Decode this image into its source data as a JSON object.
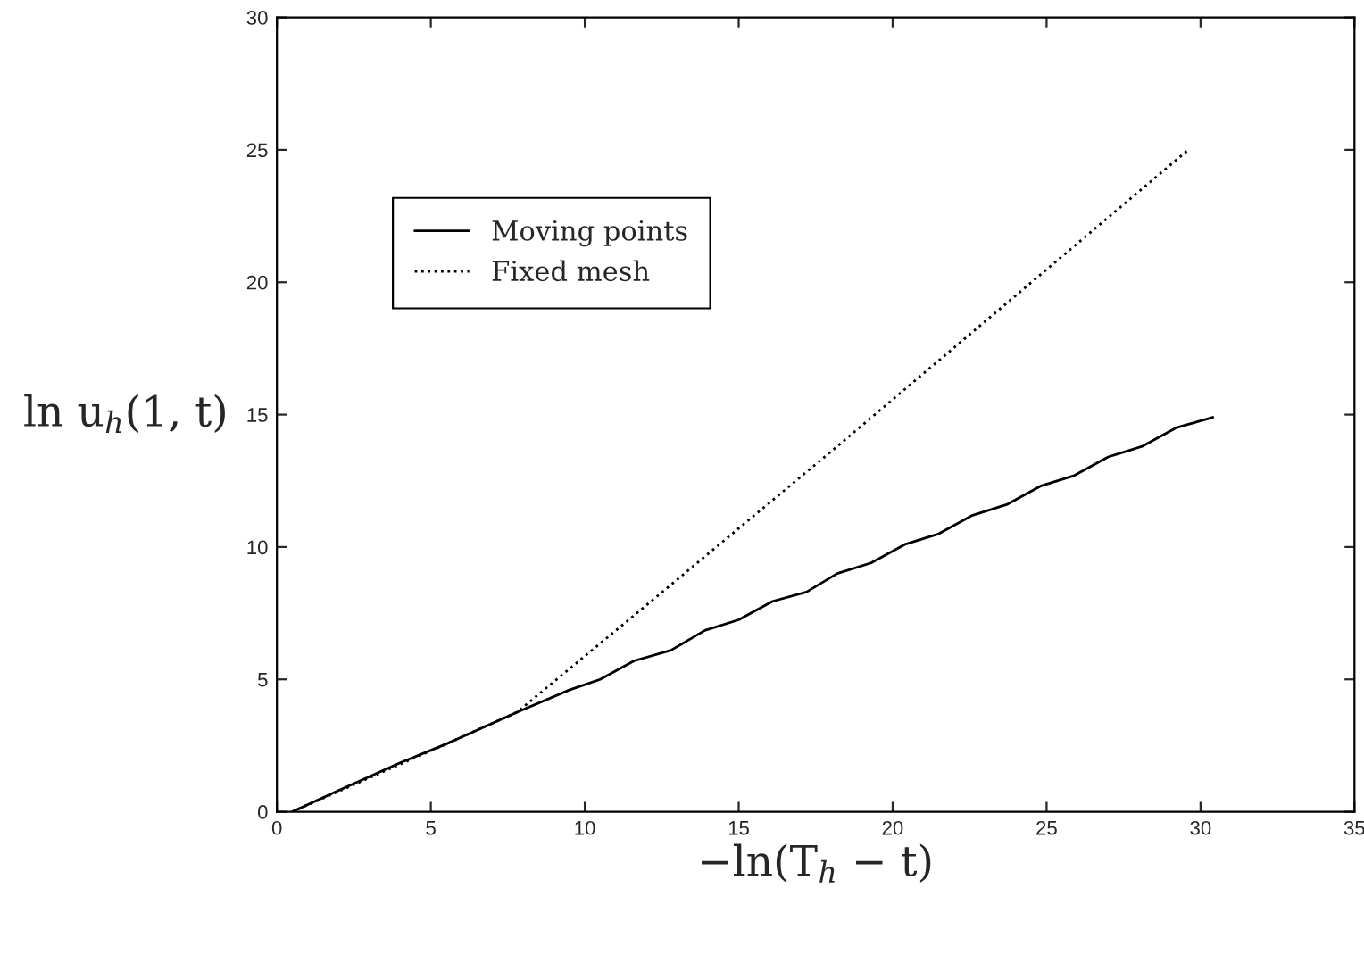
{
  "chart_data": {
    "type": "line",
    "xlabel": "−ln(T$_{h}$ − t)",
    "ylabel": "ln u$_{h}$(1, t)",
    "series": [
      {
        "name": "Moving points",
        "color": "#000000",
        "line_style": "solid",
        "x": [
          0.5,
          2,
          4,
          5.5,
          7.8,
          9.5,
          10.5,
          11.6,
          12.8,
          13.9,
          15.0,
          16.1,
          17.2,
          18.2,
          19.3,
          20.4,
          21.5,
          22.6,
          23.7,
          24.8,
          25.9,
          27.0,
          28.1,
          29.2,
          30.4
        ],
        "values": [
          0,
          0.8,
          1.85,
          2.56,
          3.76,
          4.6,
          5.0,
          5.7,
          6.1,
          6.85,
          7.25,
          7.95,
          8.3,
          9.0,
          9.4,
          10.1,
          10.5,
          11.2,
          11.6,
          12.3,
          12.7,
          13.4,
          13.8,
          14.5,
          14.9
        ]
      },
      {
        "name": "Fixed mesh",
        "color": "#000000",
        "line_style": "dotted",
        "x": [
          0.5,
          5.5,
          7.8,
          12,
          18.2,
          24,
          29.6
        ],
        "values": [
          0,
          2.56,
          3.76,
          7.8,
          13.8,
          19.5,
          25.0
        ]
      }
    ],
    "xlim": [
      0,
      35
    ],
    "ylim": [
      0,
      30
    ],
    "xticks": [
      0,
      5,
      10,
      15,
      20,
      25,
      30,
      35
    ],
    "yticks": [
      0,
      5,
      10,
      15,
      20,
      25,
      30
    ],
    "grid": false,
    "legend": "top left"
  }
}
